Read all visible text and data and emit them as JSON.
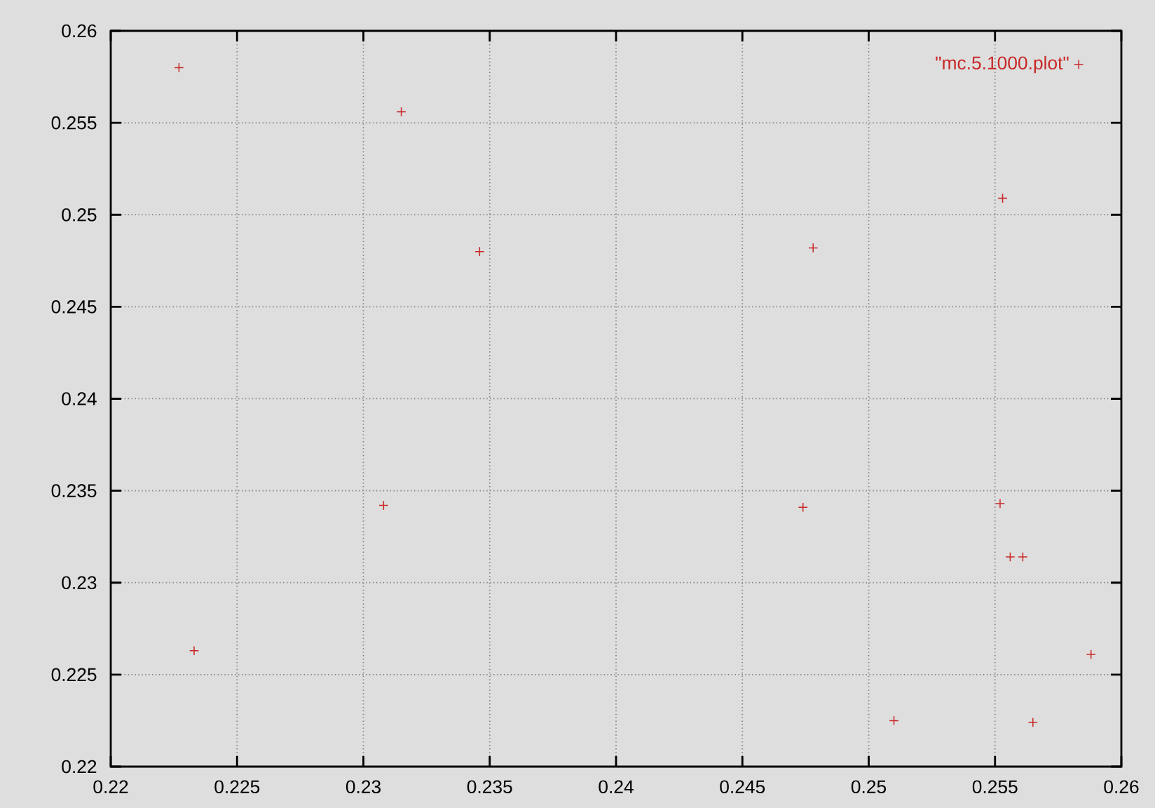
{
  "chart_data": {
    "type": "scatter",
    "series": [
      {
        "name": "\"mc.5.1000.plot\"",
        "color": "#c82828",
        "x": [
          0.2227,
          0.2315,
          0.2346,
          0.2308,
          0.2233,
          0.2478,
          0.2474,
          0.2553,
          0.2552,
          0.2556,
          0.2561,
          0.2588,
          0.251,
          0.2565
        ],
        "values": [
          0.258,
          0.2556,
          0.248,
          0.2342,
          0.2263,
          0.2482,
          0.2341,
          0.2509,
          0.2343,
          0.2314,
          0.2314,
          0.2261,
          0.2225,
          0.2224
        ]
      }
    ],
    "xlim": [
      0.22,
      0.26
    ],
    "ylim": [
      0.22,
      0.26
    ],
    "xticks": [
      0.22,
      0.225,
      0.23,
      0.235,
      0.24,
      0.245,
      0.25,
      0.255,
      0.26
    ],
    "yticks": [
      0.22,
      0.225,
      0.23,
      0.235,
      0.24,
      0.245,
      0.25,
      0.255,
      0.26
    ],
    "grid": true,
    "legend": "top right",
    "marker": "cross"
  }
}
